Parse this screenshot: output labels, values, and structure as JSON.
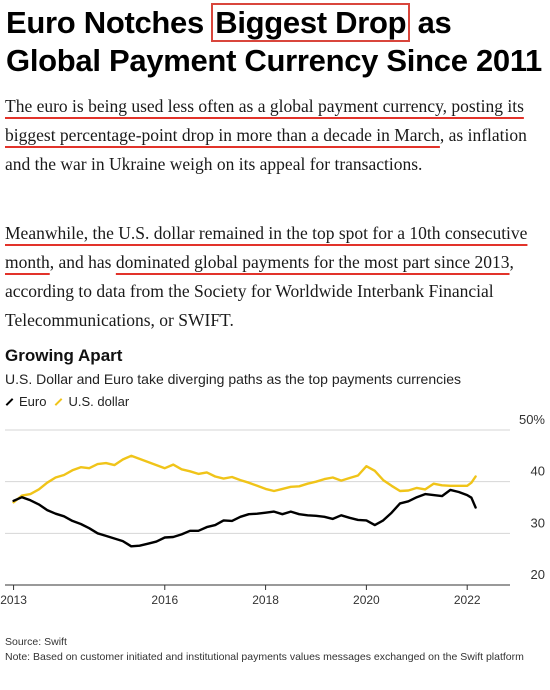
{
  "headline": {
    "part1": "Euro Notches ",
    "highlight": "Biggest Drop",
    "part2": " as Global Payment Currency Since 2011"
  },
  "paragraph1": {
    "underlined": "The euro is being used less often as a global payment currency, posting its biggest percentage-point drop in more than a decade in March",
    "rest": ", as inflation and the war in Ukraine weigh on its appeal for transactions."
  },
  "paragraph2": {
    "underlined1": "Meanwhile, the U.S. dollar remained in the top spot for a 10th consecutive month",
    "middle": ", and has ",
    "underlined2": "dominated global payments for the most part since 2013",
    "rest": ", according to data from the Society for Worldwide Interbank Financial Telecommunications, or SWIFT."
  },
  "colors": {
    "euro": "#000000",
    "dollar": "#f0c419",
    "underline": "#e2332a"
  },
  "chart_data": {
    "type": "line",
    "title": "Growing Apart",
    "subtitle": "U.S. Dollar and Euro take diverging paths as the top payments currencies",
    "xlabel": "",
    "ylabel": "",
    "y_unit": "%",
    "ylim": [
      20,
      50
    ],
    "y_ticks": [
      "50%",
      "40",
      "30",
      "20"
    ],
    "x_ticks": [
      "2013",
      "2016",
      "2018",
      "2020",
      "2022"
    ],
    "xlim": [
      "2013-01",
      "2022-04"
    ],
    "grid": "horizontal",
    "legend_position": "top-left",
    "series": [
      {
        "name": "Euro",
        "color": "#000000",
        "points": [
          [
            "2013-01",
            36.3
          ],
          [
            "2013-03",
            37.0
          ],
          [
            "2013-05",
            36.4
          ],
          [
            "2013-07",
            35.6
          ],
          [
            "2013-09",
            34.5
          ],
          [
            "2013-11",
            33.8
          ],
          [
            "2014-01",
            33.3
          ],
          [
            "2014-03",
            32.4
          ],
          [
            "2014-05",
            31.8
          ],
          [
            "2014-07",
            31.0
          ],
          [
            "2014-09",
            30.0
          ],
          [
            "2014-11",
            29.5
          ],
          [
            "2015-01",
            29.0
          ],
          [
            "2015-03",
            28.5
          ],
          [
            "2015-05",
            27.5
          ],
          [
            "2015-07",
            27.6
          ],
          [
            "2015-09",
            28.0
          ],
          [
            "2015-11",
            28.4
          ],
          [
            "2016-01",
            29.2
          ],
          [
            "2016-03",
            29.3
          ],
          [
            "2016-05",
            29.8
          ],
          [
            "2016-07",
            30.5
          ],
          [
            "2016-09",
            30.5
          ],
          [
            "2016-11",
            31.2
          ],
          [
            "2017-01",
            31.6
          ],
          [
            "2017-03",
            32.5
          ],
          [
            "2017-05",
            32.4
          ],
          [
            "2017-07",
            33.2
          ],
          [
            "2017-09",
            33.7
          ],
          [
            "2017-11",
            33.8
          ],
          [
            "2018-01",
            34.0
          ],
          [
            "2018-03",
            34.2
          ],
          [
            "2018-05",
            33.7
          ],
          [
            "2018-07",
            34.2
          ],
          [
            "2018-09",
            33.7
          ],
          [
            "2018-11",
            33.5
          ],
          [
            "2019-01",
            33.4
          ],
          [
            "2019-03",
            33.2
          ],
          [
            "2019-05",
            32.8
          ],
          [
            "2019-07",
            33.5
          ],
          [
            "2019-09",
            33.0
          ],
          [
            "2019-11",
            32.6
          ],
          [
            "2020-01",
            32.5
          ],
          [
            "2020-03",
            31.6
          ],
          [
            "2020-05",
            32.5
          ],
          [
            "2020-07",
            34.0
          ],
          [
            "2020-09",
            35.8
          ],
          [
            "2020-11",
            36.2
          ],
          [
            "2021-01",
            37.0
          ],
          [
            "2021-03",
            37.6
          ],
          [
            "2021-05",
            37.4
          ],
          [
            "2021-07",
            37.2
          ],
          [
            "2021-09",
            38.4
          ],
          [
            "2021-11",
            38.0
          ],
          [
            "2022-01",
            37.4
          ],
          [
            "2022-02",
            36.9
          ],
          [
            "2022-03",
            35.0
          ]
        ]
      },
      {
        "name": "U.S. dollar",
        "color": "#f0c419",
        "points": [
          [
            "2013-01",
            36.0
          ],
          [
            "2013-03",
            37.3
          ],
          [
            "2013-05",
            37.6
          ],
          [
            "2013-07",
            38.5
          ],
          [
            "2013-09",
            39.8
          ],
          [
            "2013-11",
            40.8
          ],
          [
            "2014-01",
            41.3
          ],
          [
            "2014-03",
            42.2
          ],
          [
            "2014-05",
            42.8
          ],
          [
            "2014-07",
            42.6
          ],
          [
            "2014-09",
            43.4
          ],
          [
            "2014-11",
            43.6
          ],
          [
            "2015-01",
            43.2
          ],
          [
            "2015-03",
            44.3
          ],
          [
            "2015-05",
            45.0
          ],
          [
            "2015-07",
            44.4
          ],
          [
            "2015-09",
            43.8
          ],
          [
            "2015-11",
            43.2
          ],
          [
            "2016-01",
            42.6
          ],
          [
            "2016-03",
            43.3
          ],
          [
            "2016-05",
            42.4
          ],
          [
            "2016-07",
            42.0
          ],
          [
            "2016-09",
            41.5
          ],
          [
            "2016-11",
            41.8
          ],
          [
            "2017-01",
            41.0
          ],
          [
            "2017-03",
            40.6
          ],
          [
            "2017-05",
            40.9
          ],
          [
            "2017-07",
            40.3
          ],
          [
            "2017-09",
            39.8
          ],
          [
            "2017-11",
            39.2
          ],
          [
            "2018-01",
            38.6
          ],
          [
            "2018-03",
            38.2
          ],
          [
            "2018-05",
            38.6
          ],
          [
            "2018-07",
            39.0
          ],
          [
            "2018-09",
            39.1
          ],
          [
            "2018-11",
            39.6
          ],
          [
            "2019-01",
            40.0
          ],
          [
            "2019-03",
            40.5
          ],
          [
            "2019-05",
            40.8
          ],
          [
            "2019-07",
            40.2
          ],
          [
            "2019-09",
            40.7
          ],
          [
            "2019-11",
            41.2
          ],
          [
            "2020-01",
            43.0
          ],
          [
            "2020-03",
            42.1
          ],
          [
            "2020-05",
            40.3
          ],
          [
            "2020-07",
            39.2
          ],
          [
            "2020-09",
            38.2
          ],
          [
            "2020-11",
            38.3
          ],
          [
            "2021-01",
            38.8
          ],
          [
            "2021-03",
            38.5
          ],
          [
            "2021-05",
            39.6
          ],
          [
            "2021-07",
            39.3
          ],
          [
            "2021-09",
            39.2
          ],
          [
            "2021-11",
            39.2
          ],
          [
            "2022-01",
            39.2
          ],
          [
            "2022-02",
            39.8
          ],
          [
            "2022-03",
            41.0
          ]
        ]
      }
    ]
  },
  "footer": {
    "source": "Source: Swift",
    "note": "Note: Based on customer initiated and institutional payments values messages exchanged on the Swift platform"
  }
}
